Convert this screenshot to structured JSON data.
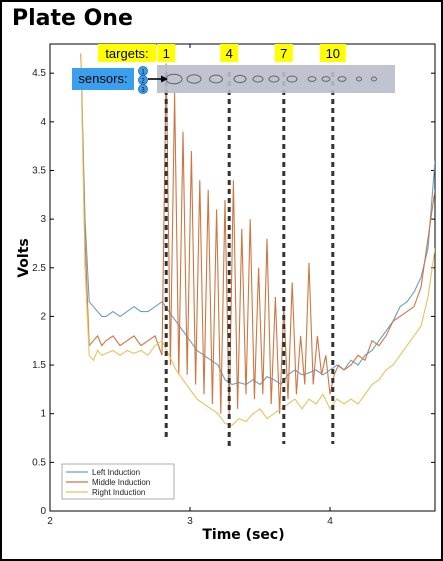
{
  "title": "Plate One",
  "annotations": {
    "targets_label": "targets:",
    "target_numbers": [
      "1",
      "4",
      "7",
      "10"
    ],
    "sensors_label": "sensors:",
    "sensor_numbers": [
      "1",
      "2",
      "3"
    ],
    "label_color": "#ffff00",
    "sensor_color": "#3aa0ee"
  },
  "chart_data": {
    "type": "line",
    "xlabel": "Time (sec)",
    "ylabel": "Volts",
    "xlim": [
      2,
      4.75
    ],
    "ylim": [
      0,
      4.8
    ],
    "xticks": [
      "2",
      "3",
      "4"
    ],
    "yticks": [
      "0",
      "0.5",
      "1",
      "1.5",
      "2",
      "2.5",
      "3",
      "3.5",
      "4",
      "4.5"
    ],
    "legend_position": "bottom-left",
    "grid": false,
    "target_marker_times": [
      2.83,
      3.28,
      3.67,
      4.02
    ],
    "series": [
      {
        "name": "Left Induction",
        "color": "#6a9ec9",
        "x": [
          2.22,
          2.25,
          2.28,
          2.31,
          2.34,
          2.37,
          2.4,
          2.45,
          2.5,
          2.55,
          2.6,
          2.65,
          2.7,
          2.75,
          2.8,
          2.85,
          2.9,
          2.95,
          3.0,
          3.05,
          3.1,
          3.15,
          3.2,
          3.25,
          3.3,
          3.35,
          3.4,
          3.45,
          3.5,
          3.55,
          3.6,
          3.65,
          3.7,
          3.75,
          3.8,
          3.85,
          3.9,
          3.95,
          4.0,
          4.05,
          4.1,
          4.15,
          4.2,
          4.25,
          4.3,
          4.35,
          4.4,
          4.45,
          4.5,
          4.55,
          4.6,
          4.65,
          4.7,
          4.75
        ],
        "values": [
          4.7,
          3.0,
          2.15,
          2.1,
          2.05,
          2.0,
          2.0,
          2.05,
          2.0,
          2.05,
          2.1,
          2.05,
          2.05,
          2.1,
          2.15,
          2.05,
          1.95,
          1.85,
          1.75,
          1.65,
          1.6,
          1.55,
          1.5,
          1.35,
          1.3,
          1.32,
          1.3,
          1.35,
          1.3,
          1.38,
          1.35,
          1.3,
          1.4,
          1.45,
          1.4,
          1.42,
          1.45,
          1.4,
          1.45,
          1.5,
          1.45,
          1.55,
          1.5,
          1.6,
          1.65,
          1.75,
          1.85,
          1.95,
          2.1,
          2.15,
          2.25,
          2.4,
          2.7,
          3.6
        ]
      },
      {
        "name": "Middle Induction",
        "color": "#cc7744",
        "x": [
          2.22,
          2.25,
          2.28,
          2.31,
          2.34,
          2.37,
          2.4,
          2.45,
          2.5,
          2.55,
          2.6,
          2.65,
          2.7,
          2.75,
          2.8,
          2.83,
          2.86,
          2.89,
          2.92,
          2.95,
          2.98,
          3.01,
          3.04,
          3.07,
          3.1,
          3.13,
          3.16,
          3.19,
          3.22,
          3.25,
          3.28,
          3.31,
          3.34,
          3.37,
          3.4,
          3.43,
          3.46,
          3.49,
          3.52,
          3.55,
          3.58,
          3.61,
          3.64,
          3.67,
          3.7,
          3.73,
          3.76,
          3.79,
          3.82,
          3.85,
          3.88,
          3.91,
          3.94,
          3.97,
          4.0,
          4.03,
          4.06,
          4.1,
          4.15,
          4.2,
          4.25,
          4.3,
          4.35,
          4.4,
          4.45,
          4.5,
          4.55,
          4.6,
          4.65,
          4.7,
          4.75
        ],
        "values": [
          4.7,
          2.8,
          1.7,
          1.75,
          1.8,
          1.7,
          1.75,
          1.8,
          1.7,
          1.75,
          1.8,
          1.7,
          1.75,
          1.8,
          1.6,
          4.6,
          1.5,
          4.3,
          1.4,
          3.9,
          1.4,
          3.7,
          1.3,
          3.4,
          1.2,
          3.3,
          1.1,
          3.1,
          1.0,
          3.2,
          1.0,
          3.4,
          1.05,
          2.9,
          1.2,
          3.0,
          1.15,
          2.5,
          1.2,
          2.8,
          1.1,
          2.2,
          1.0,
          2.1,
          1.15,
          2.35,
          1.2,
          1.8,
          1.3,
          2.55,
          1.3,
          1.8,
          1.4,
          1.6,
          1.2,
          1.4,
          1.5,
          1.45,
          1.5,
          1.6,
          1.55,
          1.75,
          1.7,
          1.8,
          1.95,
          2.0,
          2.05,
          2.1,
          2.3,
          2.8,
          3.3
        ]
      },
      {
        "name": "Right Induction",
        "color": "#e8c25a",
        "x": [
          2.22,
          2.25,
          2.28,
          2.31,
          2.34,
          2.37,
          2.4,
          2.45,
          2.5,
          2.55,
          2.6,
          2.65,
          2.7,
          2.75,
          2.8,
          2.85,
          2.9,
          2.95,
          3.0,
          3.05,
          3.1,
          3.15,
          3.2,
          3.25,
          3.3,
          3.35,
          3.4,
          3.45,
          3.5,
          3.55,
          3.6,
          3.65,
          3.7,
          3.75,
          3.8,
          3.85,
          3.9,
          3.95,
          4.0,
          4.05,
          4.1,
          4.15,
          4.2,
          4.25,
          4.3,
          4.35,
          4.4,
          4.45,
          4.5,
          4.55,
          4.6,
          4.65,
          4.7,
          4.75
        ],
        "values": [
          4.7,
          2.5,
          1.6,
          1.55,
          1.65,
          1.6,
          1.62,
          1.65,
          1.6,
          1.65,
          1.62,
          1.65,
          1.6,
          1.7,
          1.75,
          1.6,
          1.45,
          1.35,
          1.25,
          1.15,
          1.1,
          1.05,
          1.0,
          0.9,
          0.88,
          0.95,
          0.92,
          1.0,
          1.05,
          0.95,
          1.0,
          1.05,
          1.1,
          1.15,
          1.05,
          1.15,
          1.1,
          1.2,
          1.05,
          1.15,
          1.1,
          1.15,
          1.1,
          1.2,
          1.3,
          1.35,
          1.45,
          1.5,
          1.6,
          1.7,
          1.8,
          1.9,
          2.2,
          2.7
        ]
      }
    ]
  }
}
